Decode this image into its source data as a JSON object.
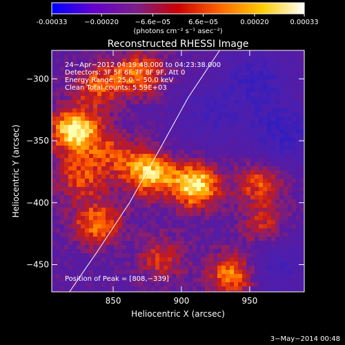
{
  "chart_data": {
    "type": "heatmap",
    "title": "Reconstructed RHESSI Image",
    "xlabel": "Heliocentric X (arcsec)",
    "ylabel": "Heliocentric Y (arcsec)",
    "xlim": [
      805,
      990
    ],
    "ylim": [
      -472,
      -277
    ],
    "x_ticks": [
      850,
      900,
      950
    ],
    "y_ticks": [
      -300,
      -350,
      -400,
      -450
    ],
    "colorbar": {
      "range": [
        -0.00033,
        0.00033
      ],
      "tick_values": [
        -0.00033,
        -0.0002,
        -6.6e-05,
        6.6e-05,
        0.0002,
        0.00033
      ],
      "tick_labels": [
        "-0.00033",
        "−0.00020",
        "−6.6e−05",
        "6.6e−05",
        "0.00020",
        "0.00033"
      ],
      "unit_label": "(photons cm⁻² s⁻¹ asec⁻²)",
      "colors": [
        "#0000ff",
        "#6600cc",
        "#7a1f8a",
        "#cc0000",
        "#ff6600",
        "#ffcc00",
        "#ffffff"
      ]
    },
    "annotations": [
      "24−Apr−2012 04:19:48.000 to 04:23:38.000",
      "Detectors: 3F 5F 6F 7F 8F 9F, Att 0",
      "Energy Range: 25.0 − 50.0 keV",
      "Clean     Total counts: 5.59E+03",
      "Position of Peak = [808,−339]"
    ],
    "peak_position": [
      808,
      -339
    ],
    "limb_curve": {
      "x": [
        818,
        838,
        862,
        885,
        905,
        928
      ],
      "y": [
        -472,
        -440,
        -400,
        -355,
        -315,
        -277
      ]
    },
    "sources": [
      {
        "x": 822,
        "y": -342,
        "v": 1.0
      },
      {
        "x": 876,
        "y": -376,
        "v": 0.85
      },
      {
        "x": 910,
        "y": -386,
        "v": 0.95
      },
      {
        "x": 938,
        "y": -458,
        "v": 0.75
      },
      {
        "x": 838,
        "y": -417,
        "v": 0.65
      },
      {
        "x": 870,
        "y": -296,
        "v": 0.6
      },
      {
        "x": 840,
        "y": -305,
        "v": 0.55
      },
      {
        "x": 958,
        "y": -384,
        "v": 0.55
      },
      {
        "x": 826,
        "y": -380,
        "v": 0.5
      },
      {
        "x": 885,
        "y": -445,
        "v": 0.45
      },
      {
        "x": 960,
        "y": -420,
        "v": 0.45
      },
      {
        "x": 850,
        "y": -360,
        "v": 0.4
      }
    ],
    "negative_sources": [
      {
        "x": 975,
        "y": -345,
        "v": 0.5
      },
      {
        "x": 955,
        "y": -300,
        "v": 0.45
      },
      {
        "x": 920,
        "y": -330,
        "v": 0.35
      },
      {
        "x": 968,
        "y": -450,
        "v": 0.4
      }
    ]
  },
  "footer": {
    "date": "3−May−2014 00:48"
  }
}
